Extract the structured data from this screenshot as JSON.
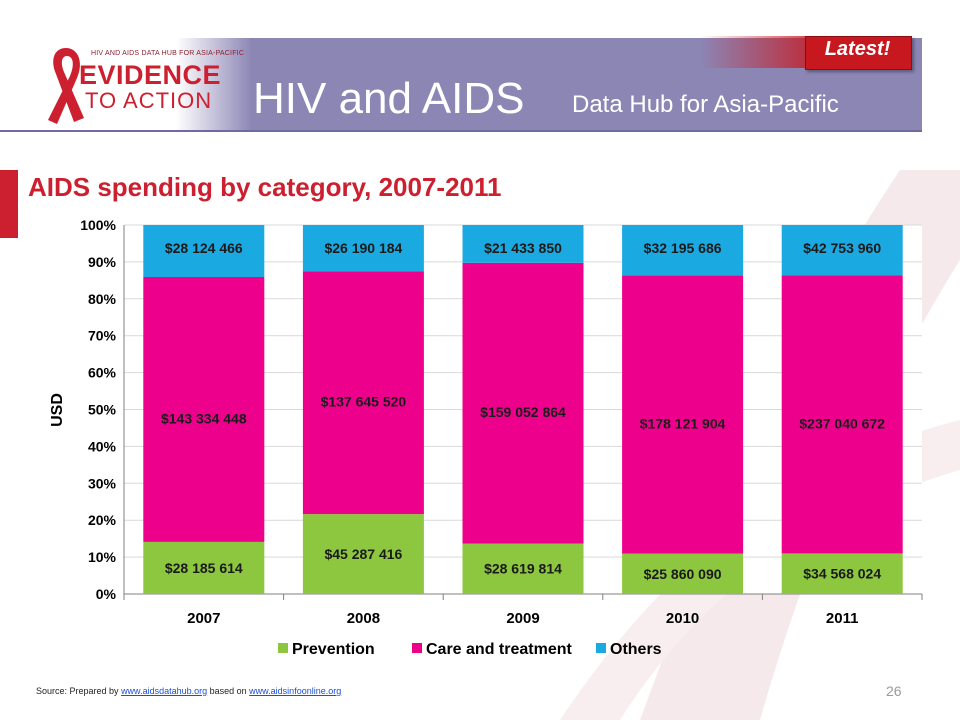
{
  "header": {
    "logo_small": "HIV AND AIDS DATA HUB FOR ASIA-PACIFIC",
    "logo_line1": "EVIDENCE",
    "logo_line2": "TO ACTION",
    "title": "HIV and AIDS",
    "subtitle": "Data Hub for Asia-Pacific",
    "badge": "Latest!",
    "colors": {
      "banner": "#8c86b5",
      "red": "#cc1f2f"
    }
  },
  "slide": {
    "title": "AIDS spending by category, 2007-2011",
    "page_number": "26"
  },
  "source": {
    "prefix": "Source: Prepared by ",
    "link1": "www.aidsdatahub.org",
    "middle": " based on ",
    "link2": "www.aidsinfoonline.org"
  },
  "chart_data": {
    "type": "bar",
    "stacked": "percent",
    "categories": [
      "2007",
      "2008",
      "2009",
      "2010",
      "2011"
    ],
    "ylabel": "USD",
    "xlabel": "",
    "ylim": [
      0,
      100
    ],
    "yticks": [
      "0%",
      "10%",
      "20%",
      "30%",
      "40%",
      "50%",
      "60%",
      "70%",
      "80%",
      "90%",
      "100%"
    ],
    "grid": true,
    "legend": "bottom",
    "series": [
      {
        "name": "Prevention",
        "color": "#8dc63f",
        "values": [
          28185614,
          45287416,
          28619814,
          25860090,
          34568024
        ],
        "labels": [
          "$28 185 614",
          "$45 287 416",
          "$28 619 814",
          "$25 860 090",
          "$34 568 024"
        ]
      },
      {
        "name": "Care and treatment",
        "color": "#ec008c",
        "values": [
          143334448,
          137645520,
          159052864,
          178121904,
          237040672
        ],
        "labels": [
          "$143 334 448",
          "$137 645 520",
          "$159 052 864",
          "$178 121 904",
          "$237 040 672"
        ]
      },
      {
        "name": "Others",
        "color": "#1ba9e1",
        "values": [
          28124466,
          26190184,
          21433850,
          32195686,
          42753960
        ],
        "labels": [
          "$28 124 466",
          "$26 190 184",
          "$21 433 850",
          "$32 195 686",
          "$42 753 960"
        ]
      }
    ]
  }
}
